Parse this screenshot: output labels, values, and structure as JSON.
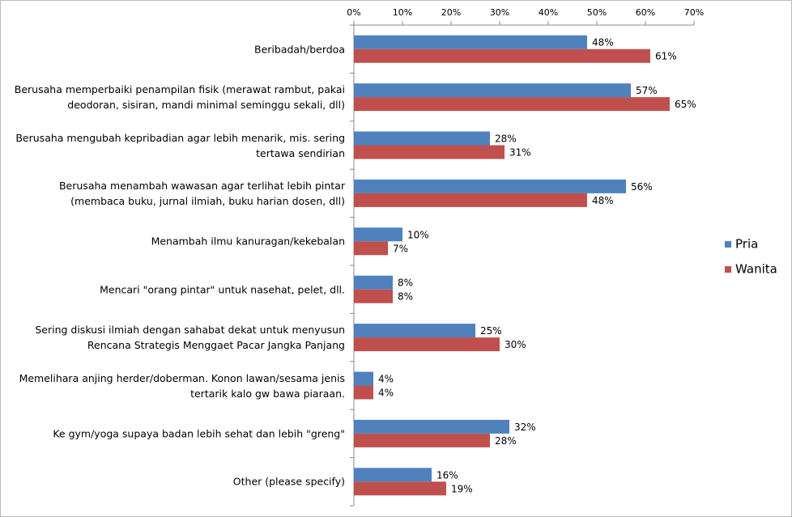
{
  "chart_data": {
    "type": "hbar",
    "categories": [
      "Beribadah/berdoa",
      "Berusaha memperbaiki penampilan fisik (merawat rambut, pakai deodoran, sisiran, mandi minimal seminggu sekali, dll)",
      "Berusaha mengubah kepribadian agar lebih menarik, mis. sering tertawa sendirian",
      "Berusaha menambah wawasan agar terlihat lebih pintar (membaca buku, jurnal ilmiah, buku harian dosen, dll)",
      "Menambah ilmu kanuragan/kekebalan",
      "Mencari \"orang pintar\" untuk nasehat, pelet, dll.",
      "Sering diskusi ilmiah dengan sahabat dekat untuk menyusun Rencana Strategis Menggaet Pacar Jangka Panjang",
      "Memelihara anjing herder/doberman. Konon lawan/sesama jenis tertarik kalo gw bawa piaraan.",
      "Ke gym/yoga supaya badan lebih sehat dan lebih \"greng\"",
      "Other (please specify)"
    ],
    "series": [
      {
        "name": "Pria",
        "color": "#4f81bd",
        "values": [
          48,
          57,
          28,
          56,
          10,
          8,
          25,
          4,
          32,
          16
        ],
        "value_labels": [
          "48%",
          "57%",
          "28%",
          "56%",
          "10%",
          "8%",
          "25%",
          "4%",
          "32%",
          "16%"
        ]
      },
      {
        "name": "Wanita",
        "color": "#c0504d",
        "values": [
          61,
          65,
          31,
          48,
          7,
          8,
          30,
          4,
          28,
          19
        ],
        "value_labels": [
          "61%",
          "65%",
          "31%",
          "48%",
          "7%",
          "8%",
          "30%",
          "4%",
          "28%",
          "19%"
        ]
      }
    ],
    "xlim": [
      0,
      70
    ],
    "xticks": [
      {
        "value": 0,
        "label": "0%"
      },
      {
        "value": 10,
        "label": "10%"
      },
      {
        "value": 20,
        "label": "20%"
      },
      {
        "value": 30,
        "label": "30%"
      },
      {
        "value": 40,
        "label": "40%"
      },
      {
        "value": 50,
        "label": "50%"
      },
      {
        "value": 60,
        "label": "60%"
      },
      {
        "value": 70,
        "label": "70%"
      }
    ],
    "legend": "right"
  }
}
